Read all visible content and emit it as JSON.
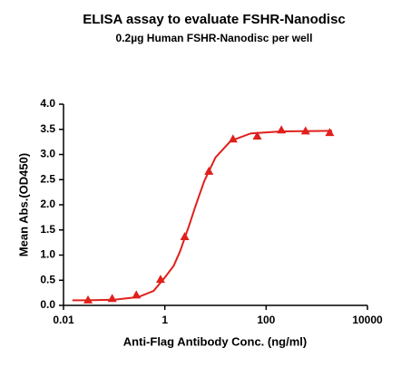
{
  "chart_data": {
    "type": "scatter",
    "title": "ELISA assay to evaluate FSHR-Nanodisc",
    "subtitle": "0.2µg Human FSHR-Nanodisc per well",
    "x_label": "Anti-Flag Antibody Conc. (ng/ml)",
    "y_label": "Mean Abs.(OD450)",
    "x_scale": "log",
    "color": "#e0201b",
    "x": [
      0.0305,
      0.0914,
      0.274,
      0.823,
      2.47,
      7.41,
      22.2,
      66.7,
      200,
      600,
      1800
    ],
    "values": [
      0.11,
      0.14,
      0.21,
      0.52,
      1.37,
      2.67,
      3.31,
      3.37,
      3.49,
      3.47,
      3.44
    ],
    "fit": {
      "x": [
        0.015,
        0.03,
        0.1,
        0.3,
        0.6,
        1,
        1.5,
        2,
        3,
        4,
        6,
        10,
        20,
        50,
        200,
        2000
      ],
      "values": [
        0.1,
        0.1,
        0.111,
        0.165,
        0.289,
        0.555,
        0.79,
        1.077,
        1.58,
        1.965,
        2.47,
        2.94,
        3.27,
        3.42,
        3.46,
        3.47
      ]
    },
    "xlim": [
      0.01,
      10000
    ],
    "xticks": [
      0.01,
      1,
      100,
      10000
    ],
    "ylim": [
      0,
      4
    ],
    "yticks": [
      {
        "value": 0,
        "label": "0.0"
      },
      {
        "value": 0.5,
        "label": "0.5"
      },
      {
        "value": 1,
        "label": "1.0"
      },
      {
        "value": 1.5,
        "label": "1.5"
      },
      {
        "value": 2,
        "label": "2.0"
      },
      {
        "value": 2.5,
        "label": "2.5"
      },
      {
        "value": 3,
        "label": "3.0"
      },
      {
        "value": 3.5,
        "label": "3.5"
      },
      {
        "value": 4,
        "label": "4.0"
      }
    ]
  }
}
